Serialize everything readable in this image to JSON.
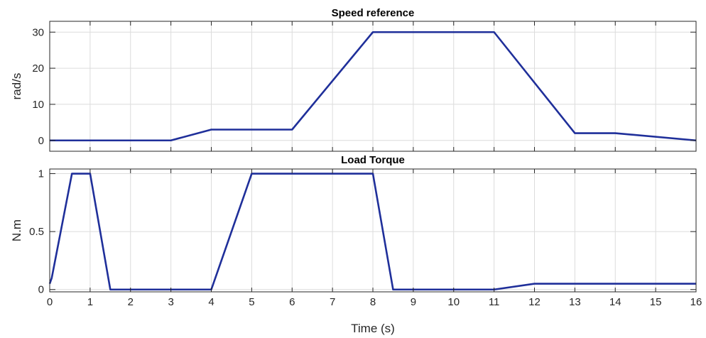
{
  "colors": {
    "line": "#1f2f9a",
    "grid": "#dcdcdc",
    "axis": "#262626",
    "background": "#ffffff"
  },
  "chart_data": [
    {
      "type": "line",
      "title": "Speed reference",
      "xlabel": "",
      "ylabel": "rad/s",
      "xlim": [
        0,
        16
      ],
      "ylim": [
        -3,
        33
      ],
      "xticks": [
        0,
        1,
        2,
        3,
        4,
        5,
        6,
        7,
        8,
        9,
        10,
        11,
        12,
        13,
        14,
        15,
        16
      ],
      "yticks": [
        0,
        10,
        20,
        30
      ],
      "ytick_labels": [
        "0",
        "10",
        "20",
        "30"
      ],
      "show_xtick_labels": false,
      "grid": true,
      "series": [
        {
          "x": [
            0,
            3,
            4,
            6,
            8,
            11,
            13,
            14,
            16
          ],
          "values": [
            0,
            0,
            3,
            3,
            30,
            30,
            2,
            2,
            0
          ]
        }
      ]
    },
    {
      "type": "line",
      "title": "Load Torque",
      "xlabel": "Time (s)",
      "ylabel": "N.m",
      "xlim": [
        0,
        16
      ],
      "ylim": [
        -0.02,
        1.04
      ],
      "xticks": [
        0,
        1,
        2,
        3,
        4,
        5,
        6,
        7,
        8,
        9,
        10,
        11,
        12,
        13,
        14,
        15,
        16
      ],
      "xtick_labels": [
        "0",
        "1",
        "2",
        "3",
        "4",
        "5",
        "6",
        "7",
        "8",
        "9",
        "10",
        "11",
        "12",
        "13",
        "14",
        "15",
        "16"
      ],
      "yticks": [
        0,
        0.5,
        1
      ],
      "ytick_labels": [
        "0",
        "0.5",
        "1"
      ],
      "show_xtick_labels": true,
      "grid": true,
      "series": [
        {
          "x": [
            0,
            0.05,
            0.55,
            1,
            1.5,
            4,
            5,
            8,
            8.5,
            11,
            12,
            16
          ],
          "values": [
            0.05,
            0.1,
            1,
            1,
            0,
            0,
            1,
            1,
            0,
            0,
            0.05,
            0.05
          ]
        }
      ]
    }
  ]
}
